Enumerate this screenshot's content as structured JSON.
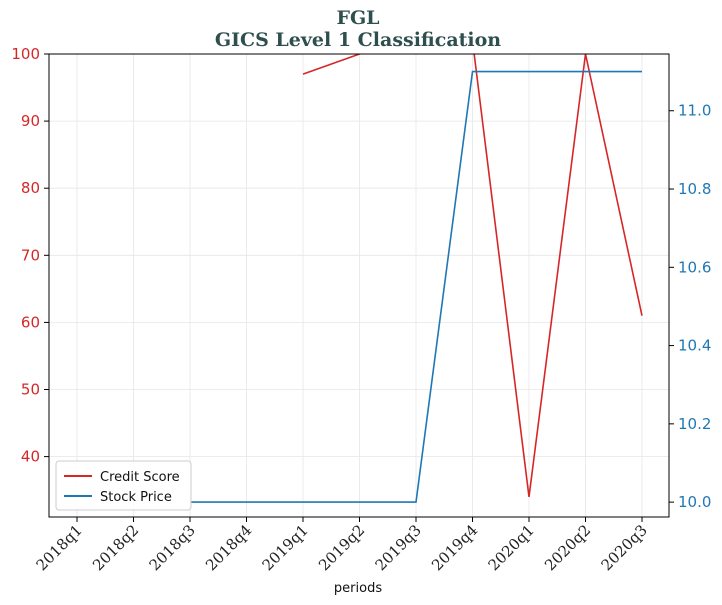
{
  "chart_data": {
    "type": "line",
    "title": "FGL",
    "subtitle": "GICS Level 1 Classification",
    "xlabel": "periods",
    "categories": [
      "2018q1",
      "2018q2",
      "2018q3",
      "2018q4",
      "2019q1",
      "2019q2",
      "2019q3",
      "2019q4",
      "2020q1",
      "2020q2",
      "2020q3"
    ],
    "left_axis": {
      "ylim": [
        31,
        100
      ],
      "ticks": [
        "40",
        "50",
        "60",
        "70",
        "80",
        "90",
        "100"
      ],
      "color": "#d62728"
    },
    "right_axis": {
      "ylim": [
        9.962,
        11.145
      ],
      "ticks": [
        "10.0",
        "10.2",
        "10.4",
        "10.6",
        "10.8",
        "11.0"
      ],
      "color": "#1f77b4"
    },
    "series": [
      {
        "name": "Credit Score",
        "axis": "left",
        "color": "#d62728",
        "values": [
          null,
          null,
          null,
          null,
          97,
          100,
          102,
          102,
          34,
          100,
          61
        ]
      },
      {
        "name": "Stock Price",
        "axis": "right",
        "color": "#1f77b4",
        "values": [
          null,
          null,
          10.0,
          10.0,
          10.0,
          10.0,
          10.0,
          11.1,
          11.1,
          11.1,
          11.1
        ]
      }
    ],
    "legend_position": "lower-left",
    "grid": true
  }
}
